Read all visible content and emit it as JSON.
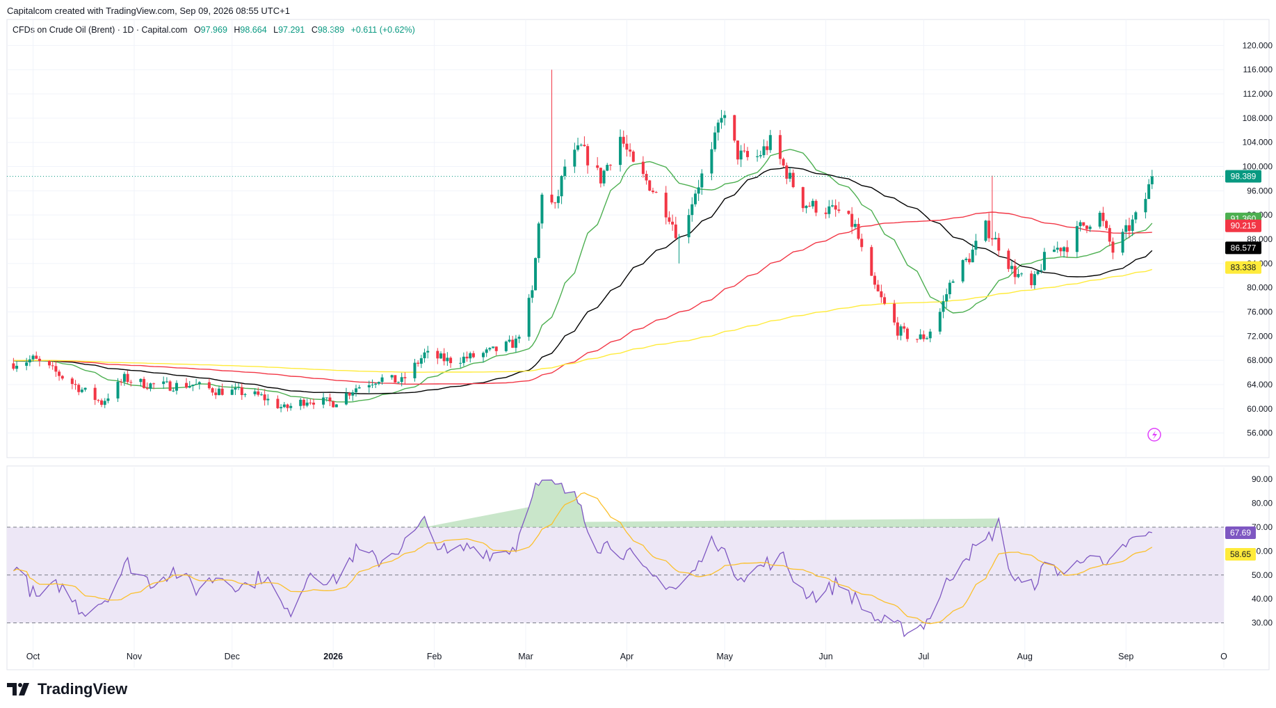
{
  "header": {
    "attribution": "Capitalcom created with TradingView.com, Sep 09, 2026 08:55 UTC+1"
  },
  "legend": {
    "symbol": "CFDs on Crude Oil (Brent) · 1D · Capital.com",
    "open_label": "O",
    "open": "97.969",
    "high_label": "H",
    "high": "98.664",
    "low_label": "L",
    "low": "97.291",
    "close_label": "C",
    "close": "98.389",
    "change": "+0.611 (+0.62%)"
  },
  "footer": {
    "brand": "TradingView"
  },
  "colors": {
    "up": "#089981",
    "down": "#f23645",
    "ma_fast": "#4caf50",
    "ma_mid": "#000000",
    "ma_slow": "#f23645",
    "ma_long": "#ffeb3b",
    "rsi": "#7e57c2",
    "rsi_ma": "#fbc02d",
    "rsi_band": "#ede7f6"
  },
  "chart_data": [
    {
      "type": "candlestick",
      "ylim": [
        54,
        122
      ],
      "y_ticks": [
        "56.000",
        "60.000",
        "64.000",
        "68.000",
        "72.000",
        "76.000",
        "80.000",
        "84.000",
        "88.000",
        "92.000",
        "96.000",
        "100.000",
        "104.000",
        "108.000",
        "112.000",
        "116.000",
        "120.000"
      ],
      "x_ticks": [
        "Oct",
        "Nov",
        "Dec",
        "2026",
        "Feb",
        "Mar",
        "Apr",
        "May",
        "Jun",
        "Jul",
        "Aug",
        "Sep",
        "O"
      ],
      "close_path_anchors": [
        [
          "2025-09-25",
          67.5
        ],
        [
          "2025-10-01",
          68.2
        ],
        [
          "2025-10-08",
          66.0
        ],
        [
          "2025-10-15",
          63.5
        ],
        [
          "2025-10-22",
          61.0
        ],
        [
          "2025-10-29",
          65.0
        ],
        [
          "2025-11-05",
          64.0
        ],
        [
          "2025-11-12",
          63.8
        ],
        [
          "2025-11-19",
          64.0
        ],
        [
          "2025-11-26",
          63.0
        ],
        [
          "2025-12-03",
          62.8
        ],
        [
          "2025-12-10",
          62.0
        ],
        [
          "2025-12-17",
          60.0
        ],
        [
          "2025-12-24",
          61.5
        ],
        [
          "2026-01-01",
          61.0
        ],
        [
          "2026-01-08",
          63.5
        ],
        [
          "2026-01-15",
          65.0
        ],
        [
          "2026-01-22",
          64.5
        ],
        [
          "2026-01-29",
          69.0
        ],
        [
          "2026-02-05",
          68.0
        ],
        [
          "2026-02-12",
          68.5
        ],
        [
          "2026-02-19",
          69.5
        ],
        [
          "2026-02-26",
          71.0
        ],
        [
          "2026-03-03",
          79.0
        ],
        [
          "2026-03-06",
          96.0
        ],
        [
          "2026-03-10",
          93.0
        ],
        [
          "2026-03-13",
          100.0
        ],
        [
          "2026-03-18",
          103.0
        ],
        [
          "2026-03-24",
          98.0
        ],
        [
          "2026-03-30",
          105.0
        ],
        [
          "2026-04-03",
          100.0
        ],
        [
          "2026-04-08",
          97.0
        ],
        [
          "2026-04-14",
          92.0
        ],
        [
          "2026-04-17",
          88.0
        ],
        [
          "2026-04-22",
          96.0
        ],
        [
          "2026-04-27",
          102.0
        ],
        [
          "2026-04-30",
          109.0
        ],
        [
          "2026-05-05",
          102.0
        ],
        [
          "2026-05-10",
          101.0
        ],
        [
          "2026-05-15",
          104.0
        ],
        [
          "2026-05-20",
          99.0
        ],
        [
          "2026-05-25",
          94.0
        ],
        [
          "2026-05-31",
          93.0
        ],
        [
          "2026-06-05",
          92.5
        ],
        [
          "2026-06-10",
          90.0
        ],
        [
          "2026-06-14",
          82.0
        ],
        [
          "2026-06-18",
          78.0
        ],
        [
          "2026-06-23",
          73.0
        ],
        [
          "2026-06-28",
          71.5
        ],
        [
          "2026-07-02",
          72.0
        ],
        [
          "2026-07-06",
          76.0
        ],
        [
          "2026-07-10",
          82.0
        ],
        [
          "2026-07-15",
          85.0
        ],
        [
          "2026-07-20",
          90.0
        ],
        [
          "2026-07-24",
          87.0
        ],
        [
          "2026-07-28",
          83.0
        ],
        [
          "2026-08-03",
          80.0
        ],
        [
          "2026-08-08",
          86.0
        ],
        [
          "2026-08-14",
          87.0
        ],
        [
          "2026-08-18",
          90.0
        ],
        [
          "2026-08-24",
          92.0
        ],
        [
          "2026-08-28",
          86.0
        ],
        [
          "2026-09-02",
          90.0
        ],
        [
          "2026-09-06",
          93.0
        ],
        [
          "2026-09-09",
          98.389
        ]
      ],
      "series": [
        {
          "name": "",
          "last": "91.360",
          "color": "#4caf50"
        },
        {
          "name": "",
          "last": "90.215",
          "color": "#f23645"
        },
        {
          "name": "",
          "last": "86.577",
          "color": "#000000"
        },
        {
          "name": "",
          "last": "83.338",
          "color": "#ffeb3b"
        }
      ],
      "price_tag": "98.389"
    },
    {
      "type": "line",
      "ylim": [
        20,
        95
      ],
      "y_ticks": [
        "30.00",
        "40.00",
        "50.00",
        "60.00",
        "70.00",
        "80.00",
        "90.00"
      ],
      "bands": [
        30,
        50,
        70
      ],
      "rsi_anchors": [
        [
          "2025-09-25",
          55
        ],
        [
          "2025-10-02",
          40
        ],
        [
          "2025-10-09",
          46
        ],
        [
          "2025-10-16",
          35
        ],
        [
          "2025-10-23",
          40
        ],
        [
          "2025-10-30",
          55
        ],
        [
          "2025-11-06",
          47
        ],
        [
          "2025-11-13",
          52
        ],
        [
          "2025-11-20",
          44
        ],
        [
          "2025-11-27",
          50
        ],
        [
          "2025-12-04",
          45
        ],
        [
          "2025-12-11",
          50
        ],
        [
          "2025-12-18",
          33
        ],
        [
          "2025-12-25",
          52
        ],
        [
          "2026-01-01",
          47
        ],
        [
          "2026-01-08",
          60
        ],
        [
          "2026-01-15",
          56
        ],
        [
          "2026-01-22",
          62
        ],
        [
          "2026-01-29",
          72
        ],
        [
          "2026-02-05",
          58
        ],
        [
          "2026-02-12",
          62
        ],
        [
          "2026-02-19",
          59
        ],
        [
          "2026-02-26",
          62
        ],
        [
          "2026-03-03",
          86
        ],
        [
          "2026-03-07",
          88
        ],
        [
          "2026-03-12",
          86
        ],
        [
          "2026-03-18",
          80
        ],
        [
          "2026-03-22",
          62
        ],
        [
          "2026-03-27",
          63
        ],
        [
          "2026-04-02",
          58
        ],
        [
          "2026-04-07",
          50
        ],
        [
          "2026-04-12",
          48
        ],
        [
          "2026-04-16",
          44
        ],
        [
          "2026-04-22",
          52
        ],
        [
          "2026-04-28",
          66
        ],
        [
          "2026-05-03",
          52
        ],
        [
          "2026-05-08",
          50
        ],
        [
          "2026-05-14",
          55
        ],
        [
          "2026-05-19",
          57
        ],
        [
          "2026-05-24",
          44
        ],
        [
          "2026-05-30",
          41
        ],
        [
          "2026-06-05",
          47
        ],
        [
          "2026-06-10",
          40
        ],
        [
          "2026-06-16",
          32
        ],
        [
          "2026-06-22",
          28
        ],
        [
          "2026-06-28",
          27
        ],
        [
          "2026-07-02",
          31
        ],
        [
          "2026-07-07",
          44
        ],
        [
          "2026-07-13",
          58
        ],
        [
          "2026-07-19",
          62
        ],
        [
          "2026-07-24",
          71
        ],
        [
          "2026-07-28",
          50
        ],
        [
          "2026-08-02",
          43
        ],
        [
          "2026-08-08",
          55
        ],
        [
          "2026-08-14",
          50
        ],
        [
          "2026-08-20",
          60
        ],
        [
          "2026-08-26",
          52
        ],
        [
          "2026-09-01",
          63
        ],
        [
          "2026-09-05",
          65
        ],
        [
          "2026-09-09",
          67.69
        ]
      ],
      "series": [
        {
          "name": "",
          "last": "67.69",
          "color": "#7e57c2"
        },
        {
          "name": "",
          "last": "58.65",
          "color": "#fbc02d"
        }
      ]
    }
  ]
}
